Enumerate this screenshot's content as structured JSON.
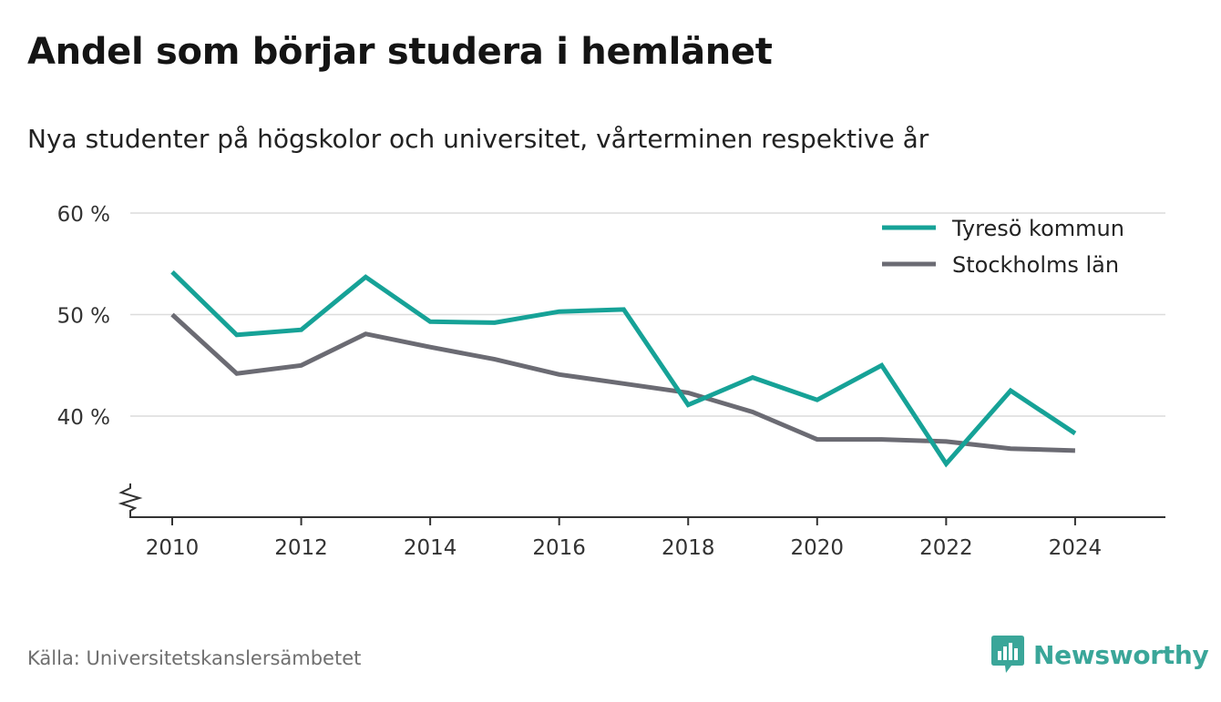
{
  "title": "Andel som börjar studera i hemlänet",
  "subtitle": "Nya studenter på högskolor och universitet, vårterminen respektive år",
  "source": "Källa: Universitetskanslersämbetet",
  "brand": {
    "name": "Newsworthy",
    "icon": "newsworthy-logo-icon",
    "color": "#3aa699"
  },
  "colors": {
    "tyreso": "#16a297",
    "stockholm": "#6b6b73",
    "grid": "#dcdcdc",
    "axis": "#333333"
  },
  "chart_data": {
    "type": "line",
    "title": "Andel som börjar studera i hemlänet",
    "subtitle": "Nya studenter på högskolor och universitet, vårterminen respektive år",
    "x": [
      2010,
      2011,
      2012,
      2013,
      2014,
      2015,
      2016,
      2017,
      2018,
      2019,
      2020,
      2021,
      2022,
      2023,
      2024
    ],
    "xticks": [
      2010,
      2012,
      2014,
      2016,
      2018,
      2020,
      2022,
      2024
    ],
    "xlim": [
      2009.35,
      2025.4
    ],
    "yticks": [
      40,
      50,
      60
    ],
    "ytick_labels": [
      "40 %",
      "50 %",
      "60 %"
    ],
    "ylim": [
      30,
      60
    ],
    "y_axis_break": true,
    "grid": true,
    "legend_position": "top-right",
    "series": [
      {
        "name": "Tyresö kommun",
        "values": [
          54.2,
          48.0,
          48.5,
          53.7,
          49.3,
          49.2,
          50.3,
          50.5,
          41.1,
          43.8,
          41.6,
          45.0,
          35.3,
          42.5,
          38.3
        ]
      },
      {
        "name": "Stockholms län",
        "values": [
          50.0,
          44.2,
          45.0,
          48.1,
          46.8,
          45.6,
          44.1,
          43.2,
          42.3,
          40.4,
          37.7,
          37.7,
          37.5,
          36.8,
          36.6
        ]
      }
    ]
  }
}
